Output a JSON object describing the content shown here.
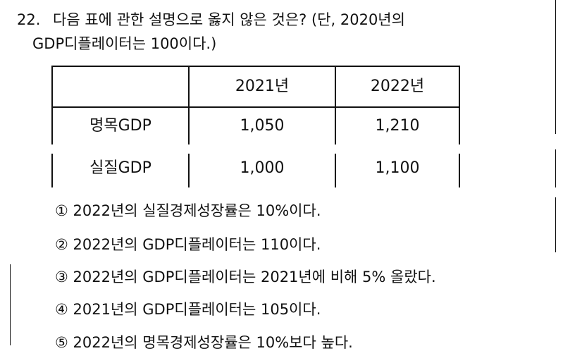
{
  "question": {
    "number": "22.",
    "line1": "다음 표에 관한 설명으로 옳지 않은 것은? (단, 2020년의",
    "line2": "GDP디플레이터는 100이다.)"
  },
  "table": {
    "headers": [
      "",
      "2021년",
      "2022년"
    ],
    "rows": [
      {
        "label": "명목GDP",
        "values": [
          "1,050",
          "1,210"
        ]
      },
      {
        "label": "실질GDP",
        "values": [
          "1,000",
          "1,100"
        ]
      }
    ]
  },
  "options": [
    {
      "marker": "①",
      "text": "2022년의 실질경제성장률은 10%이다."
    },
    {
      "marker": "②",
      "text": "2022년의 GDP디플레이터는 110이다."
    },
    {
      "marker": "③",
      "text": "2022년의 GDP디플레이터는 2021년에 비해 5% 올랐다."
    },
    {
      "marker": "④",
      "text": "2021년의 GDP디플레이터는 105이다."
    },
    {
      "marker": "⑤",
      "text": "2022년의 명목경제성장률은 10%보다 높다."
    }
  ]
}
